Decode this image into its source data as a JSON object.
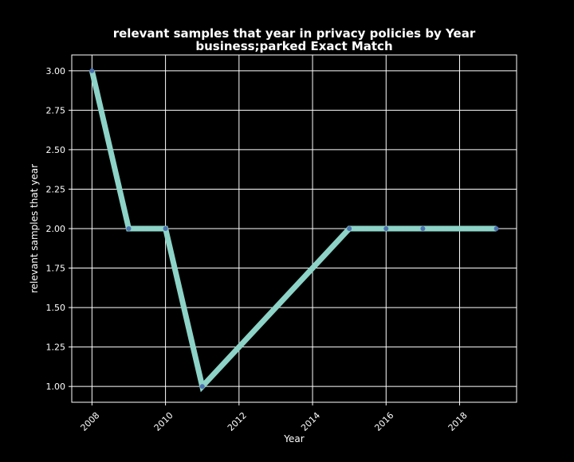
{
  "chart_data": {
    "type": "line",
    "title_line1": "relevant samples that year in privacy policies by Year",
    "title_line2": "business;parked Exact Match",
    "xlabel": "Year",
    "ylabel": "relevant samples that year",
    "x": [
      2008,
      2009,
      2010,
      2011,
      2015,
      2016,
      2017,
      2019
    ],
    "series": [
      {
        "values": [
          3,
          2,
          2,
          1,
          2,
          2,
          2,
          2
        ]
      }
    ],
    "xlim": [
      2007.45,
      2019.55
    ],
    "ylim": [
      0.9,
      3.1
    ],
    "xticks": [
      2008,
      2010,
      2012,
      2014,
      2016,
      2018
    ],
    "xtick_labels": [
      "2008",
      "2010",
      "2012",
      "2014",
      "2016",
      "2018"
    ],
    "yticks": [
      1.0,
      1.25,
      1.5,
      1.75,
      2.0,
      2.25,
      2.5,
      2.75,
      3.0
    ],
    "ytick_labels": [
      "1.00",
      "1.25",
      "1.50",
      "1.75",
      "2.00",
      "2.25",
      "2.50",
      "2.75",
      "3.00"
    ],
    "grid": true,
    "colors": {
      "background": "#000000",
      "line": "#8dd3c7",
      "marker": "#4c72b0",
      "grid": "#ffffff",
      "text": "#ffffff"
    }
  }
}
